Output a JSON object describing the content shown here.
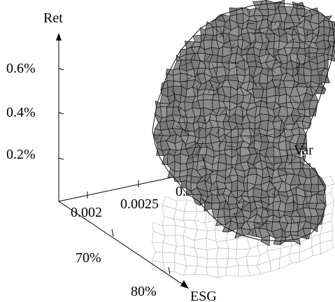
{
  "chart_data": {
    "type": "3d-surface",
    "xlabel": "Var",
    "ylabel": "ESG",
    "zlabel": "Ret",
    "x_ticks": [
      "0.002",
      "0.0025",
      "0."
    ],
    "y_ticks": [
      "70%",
      "80%"
    ],
    "z_ticks": [
      "0.2%",
      "0.4%",
      "0.6%"
    ],
    "surface_color": "#8c8c8c",
    "edge_color": "#111111",
    "shadow_color": "#c7c7c7",
    "grid": false,
    "legend": "none"
  }
}
